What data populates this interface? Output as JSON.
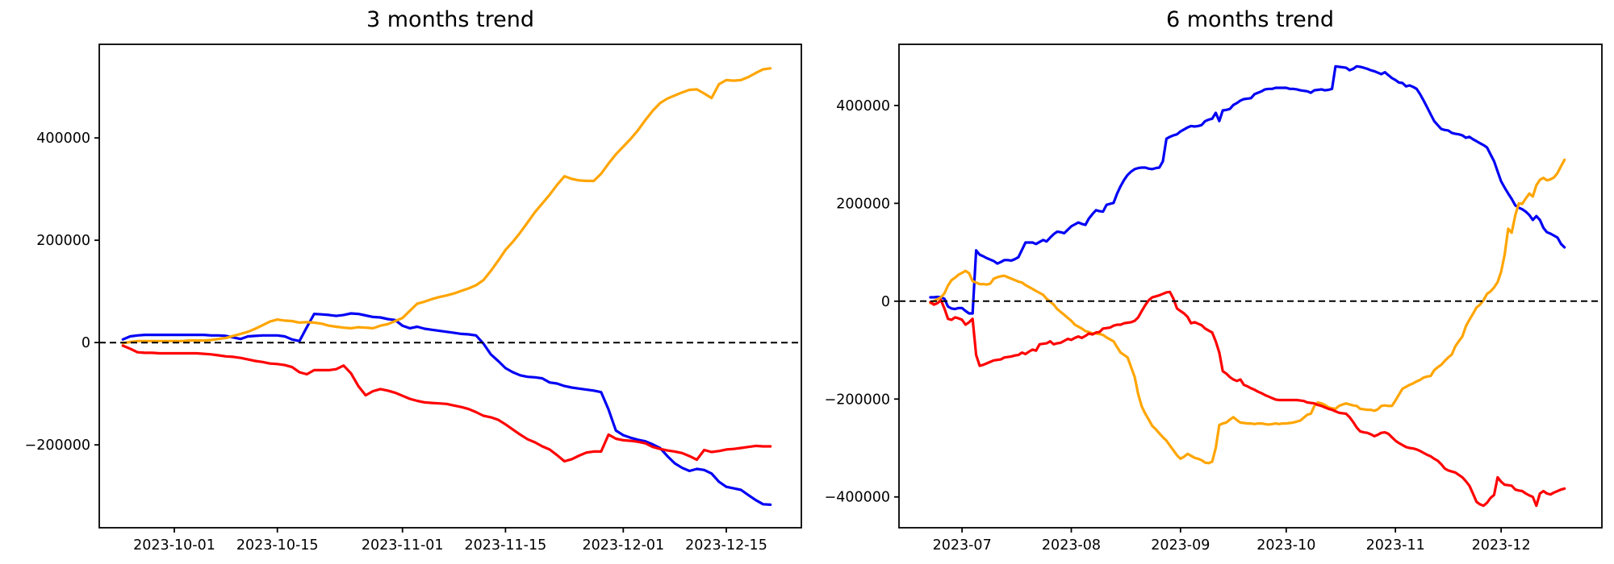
{
  "figure": {
    "background": "#ffffff",
    "frame_color": "#000000"
  },
  "chart_data": [
    {
      "type": "line",
      "title": "3 months trend",
      "x_start": "2023-09-24",
      "x_unit": "days",
      "xlabel": "",
      "ylabel": "",
      "grid": false,
      "legend": null,
      "zero_line": {
        "color": "#000000",
        "style": "dashed"
      },
      "xlim": [
        -3.2,
        92.2
      ],
      "ylim": [
        -362000,
        583000
      ],
      "x_ticks": [
        {
          "label": "2023-10-01",
          "day": 7
        },
        {
          "label": "2023-10-15",
          "day": 21
        },
        {
          "label": "2023-11-01",
          "day": 38
        },
        {
          "label": "2023-11-15",
          "day": 52
        },
        {
          "label": "2023-12-01",
          "day": 68
        },
        {
          "label": "2023-12-15",
          "day": 82
        }
      ],
      "y_ticks": [
        {
          "label": "400000",
          "value": 400000
        },
        {
          "label": "200000",
          "value": 200000
        },
        {
          "label": "0",
          "value": 0
        },
        {
          "label": "−200000",
          "value": -200000
        }
      ],
      "series": [
        {
          "name": "blue",
          "color": "#0000f5",
          "values": [
            6000,
            12000,
            14000,
            15000,
            15000,
            15000,
            15000,
            15000,
            15000,
            15000,
            15000,
            15000,
            14000,
            14000,
            13000,
            10000,
            7000,
            12000,
            13000,
            14000,
            14000,
            14000,
            12000,
            6000,
            3000,
            30000,
            56000,
            55000,
            54000,
            52000,
            54000,
            57000,
            56000,
            53000,
            50000,
            49000,
            46000,
            44000,
            33000,
            28000,
            31000,
            27000,
            25000,
            23000,
            21000,
            19000,
            17000,
            16000,
            14000,
            -2000,
            -23000,
            -36000,
            -50000,
            -58000,
            -64000,
            -67000,
            -68000,
            -70000,
            -78000,
            -80000,
            -85000,
            -88000,
            -90000,
            -92000,
            -94000,
            -97000,
            -131000,
            -172000,
            -181000,
            -186000,
            -190000,
            -193000,
            -199000,
            -206000,
            -222000,
            -236000,
            -245000,
            -251000,
            -247000,
            -249000,
            -256000,
            -272000,
            -282000,
            -285000,
            -288000,
            -298000,
            -308000,
            -316000,
            -317000
          ]
        },
        {
          "name": "orange",
          "color": "#ffa500",
          "values": [
            -1000,
            1000,
            3000,
            3000,
            3000,
            3000,
            3000,
            3000,
            3000,
            4000,
            4000,
            4000,
            5000,
            7000,
            9000,
            13000,
            17000,
            21000,
            27000,
            34000,
            41000,
            45000,
            43000,
            42000,
            39000,
            40000,
            39000,
            37000,
            33000,
            31000,
            29000,
            28000,
            30000,
            29000,
            28000,
            33000,
            36000,
            42000,
            48000,
            62000,
            76000,
            80000,
            85000,
            89000,
            92000,
            96000,
            101000,
            106000,
            112000,
            122000,
            140000,
            160000,
            181000,
            197000,
            215000,
            235000,
            255000,
            272000,
            289000,
            308000,
            325000,
            320000,
            317000,
            316000,
            316000,
            330000,
            350000,
            368000,
            383000,
            398000,
            415000,
            435000,
            453000,
            468000,
            477000,
            483000,
            489000,
            494000,
            495000,
            487000,
            478000,
            505000,
            513000,
            512000,
            513000,
            519000,
            527000,
            534000,
            536000
          ]
        },
        {
          "name": "red",
          "color": "#ff0000",
          "values": [
            -6000,
            -12000,
            -19000,
            -20000,
            -20000,
            -21000,
            -21000,
            -21000,
            -21000,
            -21000,
            -21000,
            -22000,
            -23000,
            -25000,
            -27000,
            -28000,
            -30000,
            -33000,
            -36000,
            -38000,
            -41000,
            -42000,
            -44000,
            -48000,
            -58000,
            -62000,
            -54000,
            -54000,
            -54000,
            -52000,
            -45000,
            -60000,
            -85000,
            -103000,
            -95000,
            -91000,
            -94000,
            -98000,
            -104000,
            -110000,
            -114000,
            -117000,
            -118000,
            -119000,
            -120000,
            -123000,
            -126000,
            -130000,
            -136000,
            -143000,
            -146000,
            -151000,
            -160000,
            -170000,
            -180000,
            -189000,
            -195000,
            -203000,
            -209000,
            -220000,
            -232000,
            -228000,
            -221000,
            -215000,
            -213000,
            -213000,
            -180000,
            -188000,
            -191000,
            -192000,
            -194000,
            -197000,
            -204000,
            -208000,
            -211000,
            -213000,
            -216000,
            -222000,
            -229000,
            -210000,
            -214000,
            -212000,
            -209000,
            -208000,
            -206000,
            -204000,
            -202000,
            -203000,
            -203000
          ]
        }
      ]
    },
    {
      "type": "line",
      "title": "6 months trend",
      "x_start": "2023-06-22",
      "x_unit": "days",
      "xlabel": "",
      "ylabel": "",
      "grid": false,
      "legend": null,
      "zero_line": {
        "color": "#000000",
        "style": "dashed"
      },
      "xlim": [
        -8.9,
        190.6
      ],
      "ylim": [
        -463000,
        525000
      ],
      "x_ticks": [
        {
          "label": "2023-07",
          "day": 9
        },
        {
          "label": "2023-08",
          "day": 40
        },
        {
          "label": "2023-09",
          "day": 71
        },
        {
          "label": "2023-10",
          "day": 101
        },
        {
          "label": "2023-11",
          "day": 132
        },
        {
          "label": "2023-12",
          "day": 162
        }
      ],
      "y_ticks": [
        {
          "label": "400000",
          "value": 400000
        },
        {
          "label": "200000",
          "value": 200000
        },
        {
          "label": "0",
          "value": 0
        },
        {
          "label": "−200000",
          "value": -200000
        },
        {
          "label": "−400000",
          "value": -400000
        }
      ],
      "series": [
        {
          "name": "blue",
          "color": "#0000f5",
          "values": [
            8000,
            8000,
            9000,
            8000,
            5000,
            -11000,
            -15000,
            -16000,
            -14000,
            -14000,
            -20000,
            -25000,
            -25000,
            104000,
            95000,
            92000,
            88000,
            85000,
            82000,
            77000,
            80000,
            84000,
            84000,
            83000,
            86000,
            90000,
            105000,
            120000,
            120000,
            120000,
            117000,
            121000,
            125000,
            122000,
            130000,
            137000,
            142000,
            141000,
            139000,
            146000,
            153000,
            157000,
            161000,
            158000,
            156000,
            169000,
            178000,
            186000,
            184000,
            183000,
            197000,
            199000,
            201000,
            220000,
            235000,
            248000,
            258000,
            265000,
            270000,
            272000,
            273000,
            273000,
            271000,
            270000,
            272000,
            273000,
            286000,
            332000,
            336000,
            339000,
            341000,
            347000,
            351000,
            355000,
            358000,
            357000,
            358000,
            360000,
            368000,
            371000,
            373000,
            385000,
            368000,
            390000,
            391000,
            393000,
            401000,
            405000,
            410000,
            413000,
            414000,
            415000,
            423000,
            426000,
            429000,
            433000,
            434000,
            434000,
            436000,
            436000,
            436000,
            436000,
            434000,
            434000,
            433000,
            431000,
            430000,
            429000,
            426000,
            431000,
            432000,
            433000,
            431000,
            432000,
            434000,
            480000,
            479000,
            478000,
            477000,
            472000,
            475000,
            480000,
            479000,
            477000,
            475000,
            472000,
            470000,
            467000,
            464000,
            468000,
            462000,
            456000,
            452000,
            447000,
            446000,
            439000,
            441000,
            438000,
            434000,
            423000,
            410000,
            396000,
            382000,
            368000,
            360000,
            352000,
            350000,
            349000,
            344000,
            342000,
            341000,
            339000,
            334000,
            336000,
            331000,
            327000,
            323000,
            319000,
            314000,
            300000,
            286000,
            265000,
            245000,
            232000,
            220000,
            209000,
            196000,
            191000,
            188000,
            183000,
            176000,
            166000,
            174000,
            166000,
            150000,
            141000,
            138000,
            134000,
            130000,
            117000,
            110000
          ]
        },
        {
          "name": "orange",
          "color": "#ffa500",
          "values": [
            -4000,
            0,
            4000,
            8000,
            16000,
            32000,
            43000,
            48000,
            54000,
            58000,
            62000,
            57000,
            41000,
            38000,
            35000,
            35000,
            34000,
            36000,
            46000,
            49000,
            51000,
            52000,
            49000,
            46000,
            43000,
            40000,
            38000,
            33000,
            29000,
            25000,
            21000,
            17000,
            13000,
            5000,
            -1000,
            -7000,
            -16000,
            -22000,
            -28000,
            -34000,
            -40000,
            -48000,
            -52000,
            -56000,
            -61000,
            -63000,
            -66000,
            -66000,
            -67000,
            -69000,
            -74000,
            -78000,
            -82000,
            -94000,
            -105000,
            -110000,
            -115000,
            -135000,
            -155000,
            -190000,
            -215000,
            -230000,
            -242000,
            -255000,
            -262000,
            -270000,
            -278000,
            -285000,
            -295000,
            -305000,
            -315000,
            -322000,
            -318000,
            -312000,
            -316000,
            -320000,
            -322000,
            -325000,
            -330000,
            -331000,
            -328000,
            -300000,
            -253000,
            -250000,
            -248000,
            -242000,
            -237000,
            -243000,
            -248000,
            -249000,
            -250000,
            -250000,
            -251000,
            -250000,
            -250000,
            -251000,
            -252000,
            -251000,
            -250000,
            -251000,
            -250000,
            -250000,
            -249000,
            -248000,
            -246000,
            -244000,
            -238000,
            -232000,
            -230000,
            -214000,
            -207000,
            -209000,
            -212000,
            -217000,
            -219000,
            -220000,
            -214000,
            -211000,
            -209000,
            -211000,
            -213000,
            -214000,
            -220000,
            -221000,
            -222000,
            -222000,
            -224000,
            -221000,
            -214000,
            -213000,
            -214000,
            -214000,
            -203000,
            -191000,
            -179000,
            -175000,
            -171000,
            -168000,
            -164000,
            -161000,
            -156000,
            -154000,
            -153000,
            -141000,
            -135000,
            -130000,
            -122000,
            -115000,
            -109000,
            -92000,
            -82000,
            -72000,
            -51000,
            -38000,
            -26000,
            -13000,
            -7000,
            2000,
            15000,
            20000,
            28000,
            39000,
            60000,
            95000,
            148000,
            140000,
            175000,
            200000,
            199000,
            210000,
            220000,
            214000,
            237000,
            248000,
            252000,
            247000,
            249000,
            253000,
            262000,
            276000,
            289000
          ]
        },
        {
          "name": "red",
          "color": "#ff0000",
          "values": [
            -2000,
            -7000,
            -4000,
            2000,
            -15000,
            -36000,
            -38000,
            -33000,
            -35000,
            -38000,
            -48000,
            -43000,
            -36000,
            -110000,
            -132000,
            -130000,
            -127000,
            -124000,
            -121000,
            -120000,
            -119000,
            -115000,
            -114000,
            -113000,
            -111000,
            -110000,
            -105000,
            -108000,
            -103000,
            -99000,
            -101000,
            -88000,
            -87000,
            -86000,
            -82000,
            -88000,
            -86000,
            -85000,
            -81000,
            -77000,
            -79000,
            -75000,
            -72000,
            -75000,
            -71000,
            -66000,
            -68000,
            -64000,
            -63000,
            -56000,
            -55000,
            -54000,
            -50000,
            -48000,
            -48000,
            -45000,
            -44000,
            -43000,
            -40000,
            -33000,
            -20000,
            -8000,
            2000,
            8000,
            10000,
            12000,
            15000,
            18000,
            19000,
            5000,
            -15000,
            -20000,
            -25000,
            -32000,
            -45000,
            -43000,
            -46000,
            -49000,
            -56000,
            -60000,
            -64000,
            -82000,
            -105000,
            -143000,
            -148000,
            -155000,
            -160000,
            -163000,
            -160000,
            -171000,
            -174000,
            -178000,
            -181000,
            -185000,
            -188000,
            -192000,
            -195000,
            -198000,
            -201000,
            -202000,
            -202000,
            -202000,
            -202000,
            -202000,
            -202000,
            -203000,
            -204000,
            -207000,
            -208000,
            -209000,
            -212000,
            -214000,
            -217000,
            -220000,
            -222000,
            -225000,
            -228000,
            -229000,
            -230000,
            -237000,
            -247000,
            -258000,
            -266000,
            -268000,
            -269000,
            -272000,
            -276000,
            -273000,
            -269000,
            -268000,
            -271000,
            -278000,
            -285000,
            -290000,
            -294000,
            -298000,
            -300000,
            -301000,
            -303000,
            -306000,
            -310000,
            -314000,
            -317000,
            -322000,
            -326000,
            -333000,
            -342000,
            -346000,
            -348000,
            -350000,
            -355000,
            -360000,
            -368000,
            -377000,
            -393000,
            -410000,
            -415000,
            -418000,
            -412000,
            -402000,
            -396000,
            -360000,
            -369000,
            -375000,
            -376000,
            -377000,
            -385000,
            -387000,
            -388000,
            -393000,
            -397000,
            -400000,
            -418000,
            -393000,
            -388000,
            -393000,
            -395000,
            -391000,
            -388000,
            -385000,
            -383000
          ]
        }
      ]
    }
  ]
}
